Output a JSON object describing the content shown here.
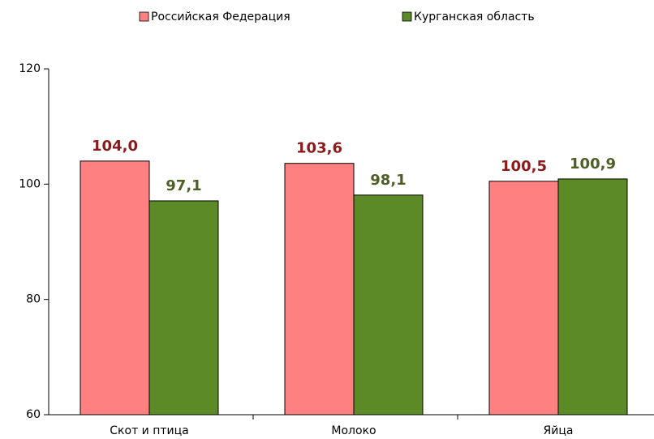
{
  "chart_data": {
    "type": "bar",
    "categories": [
      "Скот и птица",
      "Молоко",
      "Яйца"
    ],
    "series": [
      {
        "name": "Российская Федерация",
        "color": "#ff8080",
        "label_color": "#8b1a1a",
        "values": [
          104.0,
          103.6,
          100.5
        ],
        "value_labels": [
          "104,0",
          "103,6",
          "100,5"
        ]
      },
      {
        "name": "Курганская область",
        "color": "#5b8a27",
        "label_color": "#4d5e26",
        "values": [
          97.1,
          98.1,
          100.9
        ],
        "value_labels": [
          "97,1",
          "98,1",
          "100,9"
        ]
      }
    ],
    "ylim": [
      60,
      120
    ],
    "yticks": [
      60,
      80,
      100,
      120
    ],
    "grid": false,
    "legend": "top"
  }
}
